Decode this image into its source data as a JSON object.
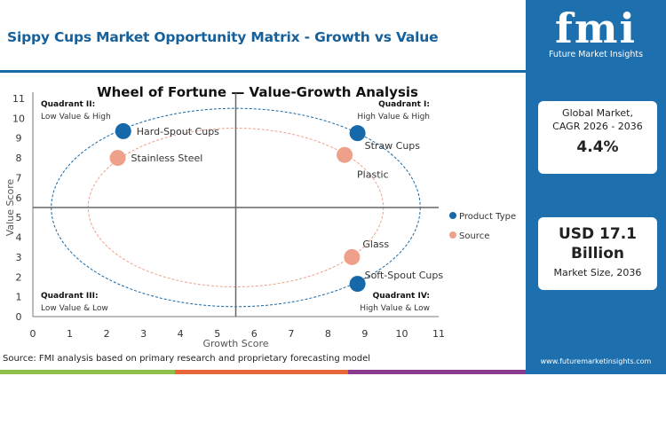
{
  "header": {
    "title": "Sippy Cups Market Opportunity Matrix - Growth vs Value"
  },
  "sidebar": {
    "logo_text": "fmi",
    "logo_sub": "Future Market Insights",
    "cagr_label_1": "Global Market,",
    "cagr_label_2": "CAGR 2026 - 2036",
    "cagr_value": "4.4%",
    "size_value_1": "USD 17.1",
    "size_value_2": "Billion",
    "size_label": "Market Size, 2036",
    "url": "www.futuremarketinsights.com"
  },
  "footer": {
    "source": "Source: FMI analysis based on primary research and proprietary forecasting model",
    "bar_colors": [
      "#8dc04a",
      "#e8673a",
      "#8a3a8c"
    ]
  },
  "chart_data": {
    "type": "scatter",
    "title": "Wheel of Fortune — Value-Growth  Analysis",
    "xlabel": "Growth Score",
    "ylabel": "Value Score",
    "xlim": [
      0,
      11
    ],
    "ylim": [
      0,
      11
    ],
    "xticks": [
      "0",
      "1",
      "2",
      "3",
      "4",
      "5",
      "6",
      "7",
      "8",
      "9",
      "10",
      "11"
    ],
    "yticks": [
      "0",
      "1",
      "2",
      "3",
      "4",
      "5",
      "6",
      "7",
      "8",
      "9",
      "10",
      "11"
    ],
    "quadrant_divider": {
      "x": 5.5,
      "y": 5.5
    },
    "quadrants": [
      {
        "name": "Quadrant II:",
        "desc": "Low Value & High",
        "pos": "top-left"
      },
      {
        "name": "Quadrant I:",
        "desc": "High Value & High",
        "pos": "top-right"
      },
      {
        "name": "Quadrant III:",
        "desc": "Low Value & Low",
        "pos": "bottom-left"
      },
      {
        "name": "Quadrant IV:",
        "desc": "High Value & Low",
        "pos": "bottom-right"
      }
    ],
    "legend_position": "right",
    "series": [
      {
        "name": "Product Type",
        "color": "#1668a8",
        "ring": {
          "cx": 5.5,
          "cy": 5.5,
          "rx": 5,
          "ry": 5
        },
        "points": [
          {
            "label": "Hard-Spout Cups",
            "x": 2.45,
            "y": 9.35
          },
          {
            "label": "Straw Cups",
            "x": 8.8,
            "y": 9.25
          },
          {
            "label": "Soft-Spout Cups",
            "x": 8.8,
            "y": 1.65
          }
        ]
      },
      {
        "name": "Source",
        "color": "#eea08a",
        "ring": {
          "cx": 5.5,
          "cy": 5.5,
          "rx": 4,
          "ry": 4
        },
        "points": [
          {
            "label": "Stainless Steel",
            "x": 2.3,
            "y": 8.0
          },
          {
            "label": "Plastic",
            "x": 8.45,
            "y": 8.15
          },
          {
            "label": "Glass",
            "x": 8.65,
            "y": 3.0
          }
        ]
      }
    ]
  }
}
